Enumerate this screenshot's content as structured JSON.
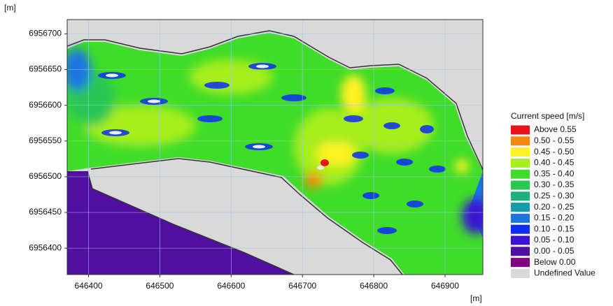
{
  "chart_data": {
    "type": "contour",
    "x_label": "[m]",
    "y_label": "[m]",
    "xlim": [
      646370,
      646953
    ],
    "ylim": [
      6956363,
      6956720
    ],
    "xticks": [
      646400,
      646500,
      646600,
      646700,
      646800,
      646900
    ],
    "yticks": [
      6956400,
      6956450,
      6956500,
      6956550,
      6956600,
      6956650,
      6956700
    ],
    "grid": true,
    "legend": {
      "title": "Current speed [m/s]",
      "position": "right",
      "items": [
        {
          "label": "Above 0.55",
          "color": "#e8121a"
        },
        {
          "label": "0.50 - 0.55",
          "color": "#f5880f"
        },
        {
          "label": "0.45 - 0.50",
          "color": "#fff222"
        },
        {
          "label": "0.40 - 0.45",
          "color": "#a6ee1e"
        },
        {
          "label": "0.35 - 0.40",
          "color": "#3fdc2a"
        },
        {
          "label": "0.30 - 0.35",
          "color": "#2cc652"
        },
        {
          "label": "0.25 - 0.30",
          "color": "#1db07e"
        },
        {
          "label": "0.20 - 0.25",
          "color": "#139caa"
        },
        {
          "label": "0.15 - 0.20",
          "color": "#1c74e2"
        },
        {
          "label": "0.10 - 0.15",
          "color": "#0f2ef2"
        },
        {
          "label": "0.05 - 0.10",
          "color": "#3a12d0"
        },
        {
          "label": "0.00 - 0.05",
          "color": "#500fa0"
        },
        {
          "label": "Below 0.00",
          "color": "#800080"
        },
        {
          "label": "Undefined Value",
          "color": "#d9d9d9"
        }
      ]
    }
  }
}
